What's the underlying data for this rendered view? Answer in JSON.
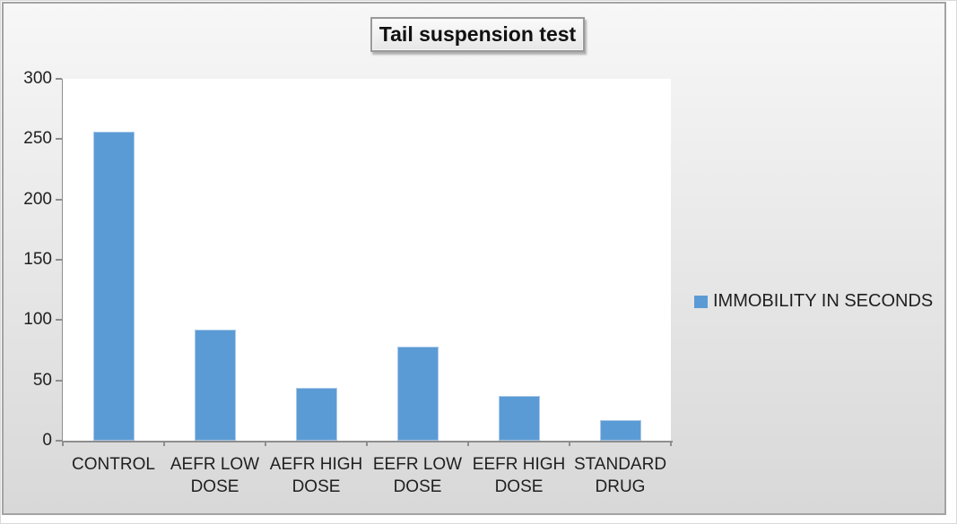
{
  "title": "Tail suspension test",
  "legend": {
    "label": "IMMOBILITY IN SECONDS"
  },
  "colors": {
    "bar": "#5b9bd5",
    "bar_border": "#a9c9e8",
    "axis": "#8e8e8e",
    "text": "#1f1f1f",
    "plot_bg": "#ffffff",
    "chart_bg_top": "#f7f7f7",
    "chart_bg_bottom": "#d8d8d8",
    "frame_border": "#a3a3a3",
    "title_box_border": "#9a9a9a"
  },
  "chart_data": {
    "type": "bar",
    "title": "Tail suspension test",
    "categories": [
      "CONTROL",
      "AEFR LOW DOSE",
      "AEFR HIGH DOSE",
      "EEFR LOW DOSE",
      "EEFR HIGH DOSE",
      "STANDARD DRUG"
    ],
    "series": [
      {
        "name": "IMMOBILITY IN SECONDS",
        "values": [
          256,
          92,
          44,
          78,
          37,
          17
        ]
      }
    ],
    "xlabel": "",
    "ylabel": "",
    "ylim": [
      0,
      300
    ],
    "yticks": [
      0,
      50,
      100,
      150,
      200,
      250,
      300
    ],
    "grid": false,
    "legend_position": "right",
    "bar_color": "#5b9bd5"
  }
}
